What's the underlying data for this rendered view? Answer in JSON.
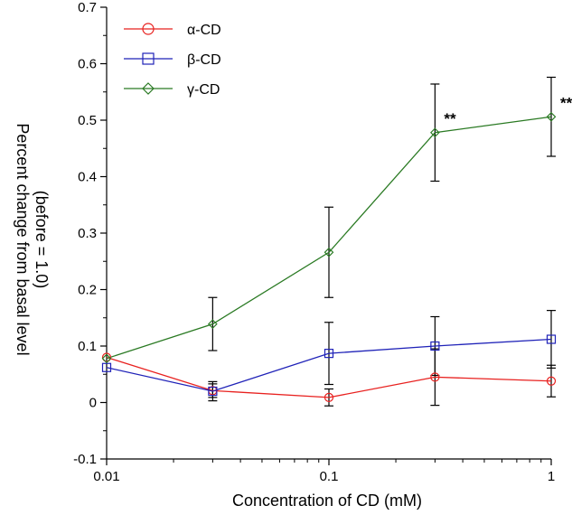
{
  "chart_data": {
    "type": "line",
    "title": "",
    "xlabel": "Concentration of CD (mM)",
    "ylabel_line1": "Percent change from basal level",
    "ylabel_line2": "(before = 1.0)",
    "xscale": "log",
    "xlim": [
      0.01,
      1
    ],
    "ylim": [
      -0.1,
      0.7
    ],
    "x_ticks": [
      0.01,
      0.1,
      1
    ],
    "x_tick_labels": [
      "0.01",
      "0.1",
      "1"
    ],
    "y_ticks": [
      -0.1,
      0,
      0.1,
      0.2,
      0.3,
      0.4,
      0.5,
      0.6,
      0.7
    ],
    "y_tick_labels": [
      "-0.1",
      "0",
      "0.1",
      "0.2",
      "0.3",
      "0.4",
      "0.5",
      "0.6",
      "0.7"
    ],
    "legend_position": "top-left",
    "x": [
      0.01,
      0.03,
      0.1,
      0.3,
      1
    ],
    "series": [
      {
        "name": "α-CD",
        "color": "#e8211f",
        "marker": "circle",
        "values": [
          0.08,
          0.021,
          0.009,
          0.045,
          0.038
        ],
        "errors": [
          0,
          0.012,
          0.015,
          0.05,
          0.028
        ]
      },
      {
        "name": "β-CD",
        "color": "#1f22b8",
        "marker": "square",
        "values": [
          0.062,
          0.02,
          0.087,
          0.1,
          0.112
        ],
        "errors": [
          0,
          0.017,
          0.055,
          0.052,
          0.051
        ]
      },
      {
        "name": "γ-CD",
        "color": "#2a7a23",
        "marker": "diamond",
        "values": [
          0.078,
          0.139,
          0.266,
          0.478,
          0.506
        ],
        "errors": [
          0,
          0.047,
          0.08,
          0.086,
          0.07
        ]
      }
    ],
    "annotations": [
      {
        "text": "**",
        "x": 0.3,
        "y": 0.478
      },
      {
        "text": "**",
        "x": 1,
        "y": 0.506
      }
    ]
  }
}
